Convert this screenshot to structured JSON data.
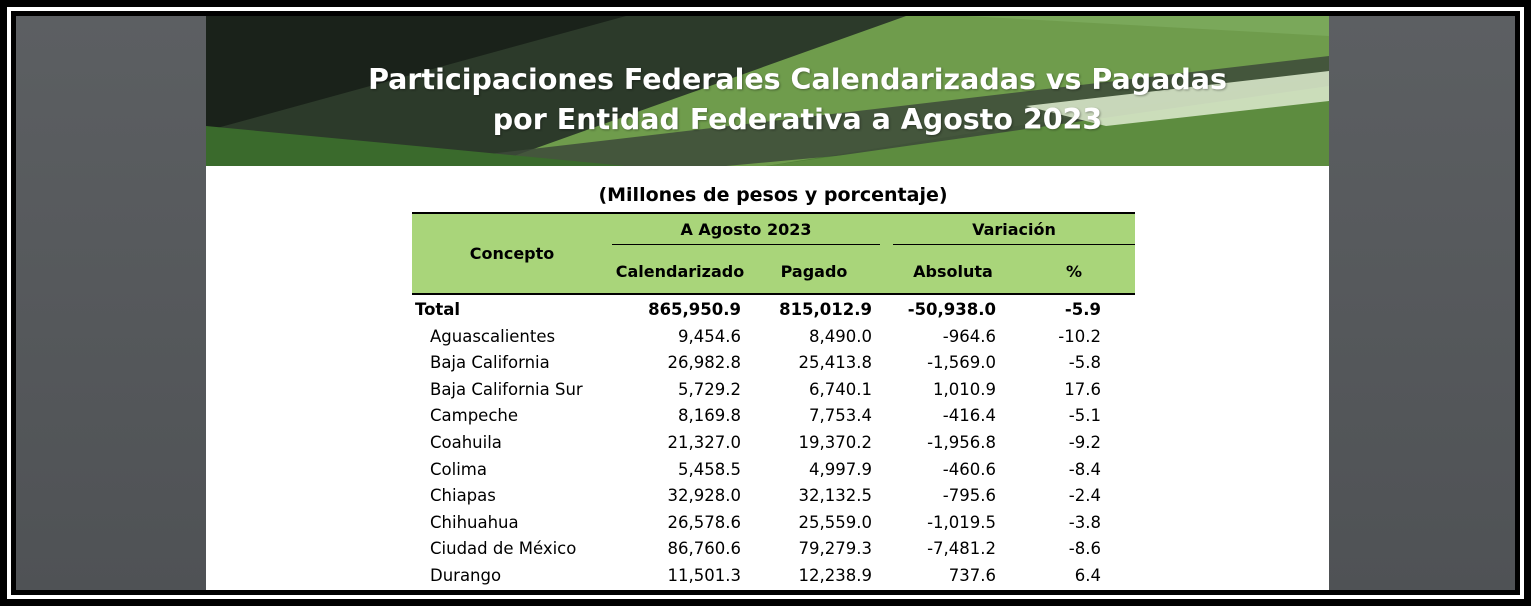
{
  "banner": {
    "title_line1": "Participaciones Federales Calendarizadas vs Pagadas",
    "title_line2": "por Entidad Federativa a Agosto 2023"
  },
  "subtitle": "(Millones de pesos y porcentaje)",
  "table": {
    "headers": {
      "concepto": "Concepto",
      "group_period": "A Agosto 2023",
      "group_variation": "Variación",
      "calendarizado": "Calendarizado",
      "pagado": "Pagado",
      "absoluta": "Absoluta",
      "pct": "%"
    },
    "rows": [
      {
        "name": "Total",
        "cal": "865,950.9",
        "pag": "815,012.9",
        "abs": "-50,938.0",
        "pct": "-5.9"
      },
      {
        "name": "Aguascalientes",
        "cal": "9,454.6",
        "pag": "8,490.0",
        "abs": "-964.6",
        "pct": "-10.2"
      },
      {
        "name": "Baja California",
        "cal": "26,982.8",
        "pag": "25,413.8",
        "abs": "-1,569.0",
        "pct": "-5.8"
      },
      {
        "name": "Baja California Sur",
        "cal": "5,729.2",
        "pag": "6,740.1",
        "abs": "1,010.9",
        "pct": "17.6"
      },
      {
        "name": "Campeche",
        "cal": "8,169.8",
        "pag": "7,753.4",
        "abs": "-416.4",
        "pct": "-5.1"
      },
      {
        "name": "Coahuila",
        "cal": "21,327.0",
        "pag": "19,370.2",
        "abs": "-1,956.8",
        "pct": "-9.2"
      },
      {
        "name": "Colima",
        "cal": "5,458.5",
        "pag": "4,997.9",
        "abs": "-460.6",
        "pct": "-8.4"
      },
      {
        "name": "Chiapas",
        "cal": "32,928.0",
        "pag": "32,132.5",
        "abs": "-795.6",
        "pct": "-2.4"
      },
      {
        "name": "Chihuahua",
        "cal": "26,578.6",
        "pag": "25,559.0",
        "abs": "-1,019.5",
        "pct": "-3.8"
      },
      {
        "name": "Ciudad de México",
        "cal": "86,760.6",
        "pag": "79,279.3",
        "abs": "-7,481.2",
        "pct": "-8.6"
      },
      {
        "name": "Durango",
        "cal": "11,501.3",
        "pag": "12,238.9",
        "abs": "737.6",
        "pct": "6.4"
      }
    ]
  },
  "colors": {
    "header_green": "#a9d57a",
    "banner_green": "#5a8c3c",
    "banner_dark": "#1f2a1f"
  }
}
